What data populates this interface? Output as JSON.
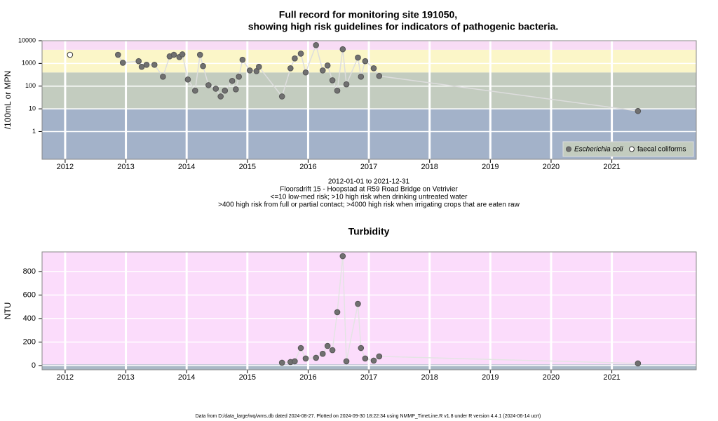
{
  "chart_data": [
    {
      "type": "scatter",
      "title": [
        "Full record for monitoring site 191050,",
        "showing high risk guidelines for indicators of pathogenic bacteria."
      ],
      "notes": [
        "2012-01-01 to 2021-12-31",
        "Floorsdrift 15 - Hoopstad at R59 Road Bridge on Vetrivier",
        "<=10 low-med risk; >10 high risk when drinking untreated water",
        ">400 high risk from full or partial contact; >4000 high risk when irrigating crops that are eaten raw"
      ],
      "ylabel": "/100mL or MPN",
      "log": true,
      "xlim": [
        2011.62,
        2022.39
      ],
      "xticks": [
        2012,
        2013,
        2014,
        2015,
        2016,
        2017,
        2018,
        2019,
        2020,
        2021
      ],
      "ylim": [
        0.06,
        10000
      ],
      "yticks": [
        1,
        10,
        100,
        1000,
        10000
      ],
      "grid": true,
      "legend": "bottom-right",
      "line_color": "#dddddd",
      "bands": [
        {
          "from": 0.06,
          "to": 10,
          "color": "#a3b2c9"
        },
        {
          "from": 10,
          "to": 400,
          "color": "#c3ccbf"
        },
        {
          "from": 400,
          "to": 4000,
          "color": "#fbf6c8"
        },
        {
          "from": 4000,
          "to": 10000,
          "color": "#f8dcf5"
        }
      ],
      "series": [
        {
          "name": "Escherichia coli",
          "color": "#555555",
          "fill": "#707070",
          "x": [
            2012.87,
            2012.95,
            2013.21,
            2013.26,
            2013.34,
            2013.47,
            2013.61,
            2013.72,
            2013.79,
            2013.88,
            2013.93,
            2014.02,
            2014.14,
            2014.22,
            2014.27,
            2014.36,
            2014.48,
            2014.56,
            2014.63,
            2014.75,
            2014.81,
            2014.86,
            2014.92,
            2015.04,
            2015.15,
            2015.19,
            2015.57,
            2015.71,
            2015.78,
            2015.88,
            2015.96,
            2016.13,
            2016.24,
            2016.32,
            2016.4,
            2016.48,
            2016.57,
            2016.63,
            2016.82,
            2016.87,
            2016.94,
            2017.08,
            2017.17,
            2021.43
          ],
          "values": [
            2400,
            1070,
            1250,
            710,
            870,
            870,
            260,
            2050,
            2400,
            1900,
            2500,
            195,
            63,
            2400,
            760,
            110,
            77,
            35,
            63,
            170,
            72,
            260,
            1450,
            490,
            460,
            710,
            35,
            610,
            1650,
            2700,
            400,
            6400,
            490,
            810,
            180,
            63,
            4200,
            120,
            1800,
            260,
            1250,
            610,
            280,
            8
          ]
        },
        {
          "name": "faecal coliforms",
          "color": "#333333",
          "fill": "#ffffff",
          "x": [
            2012.08
          ],
          "values": [
            2400
          ]
        }
      ]
    },
    {
      "type": "scatter",
      "title": [
        "Turbidity"
      ],
      "ylabel": "NTU",
      "log": false,
      "xlim": [
        2011.62,
        2022.39
      ],
      "xticks": [
        2012,
        2013,
        2014,
        2015,
        2016,
        2017,
        2018,
        2019,
        2020,
        2021
      ],
      "ylim": [
        -36,
        967
      ],
      "yticks": [
        0,
        200,
        400,
        600,
        800
      ],
      "grid": true,
      "line_color": "#e4e4e4",
      "bands": [
        {
          "from": -36,
          "to": 10,
          "color": "#a9b8c6"
        },
        {
          "from": 10,
          "to": 967,
          "color": "#fbdcfb"
        }
      ],
      "series": [
        {
          "name": "Turbidity",
          "color": "#555555",
          "fill": "#707070",
          "x": [
            2015.57,
            2015.71,
            2015.78,
            2015.88,
            2015.96,
            2016.13,
            2016.24,
            2016.32,
            2016.4,
            2016.48,
            2016.57,
            2016.63,
            2016.82,
            2016.87,
            2016.94,
            2017.08,
            2017.17,
            2021.43
          ],
          "values": [
            24,
            30,
            36,
            149,
            60,
            66,
            100,
            167,
            131,
            454,
            931,
            36,
            525,
            149,
            60,
            42,
            78,
            18
          ]
        }
      ]
    }
  ],
  "footer": "Data from D:/data_large/wq/wms.db dated 2024-08-27. Plotted on 2024-09-30 18:22:34 using NMMP_TimeLine.R v1.8 under R version 4.4.1 (2024-06-14 ucrt)"
}
